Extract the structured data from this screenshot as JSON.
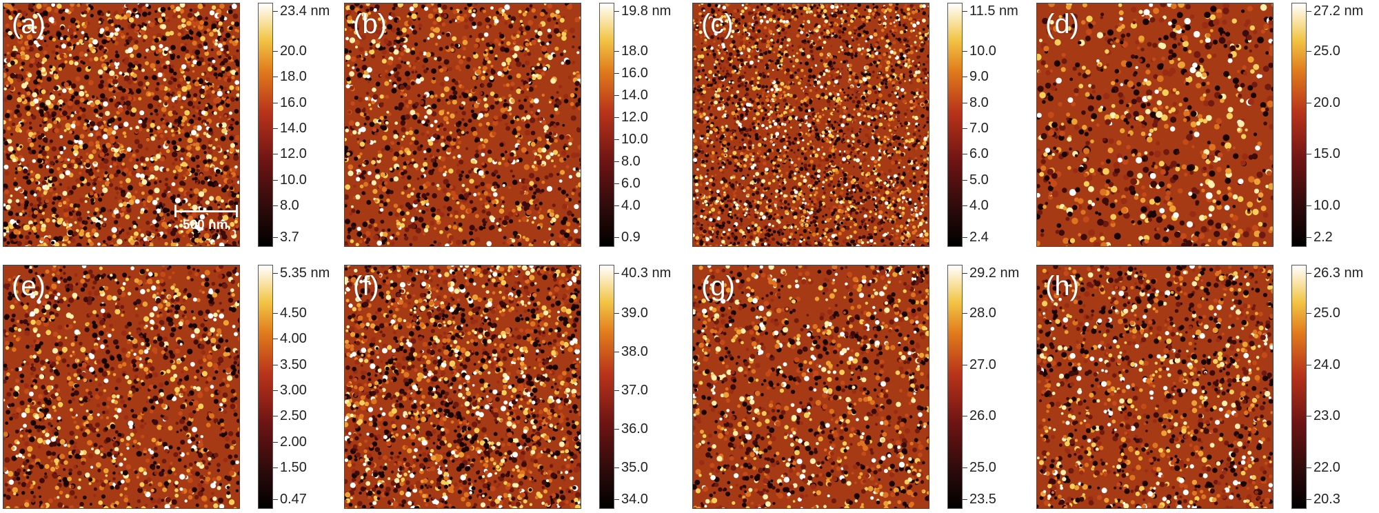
{
  "panels": [
    {
      "id": "a",
      "label": "(a)",
      "max_label": "23.4 nm",
      "min_label": "3.7",
      "ticks": [
        "20.0",
        "18.0",
        "16.0",
        "14.0",
        "12.0",
        "10.0",
        "8.0"
      ],
      "density": "high",
      "scale_bar": "500 nm"
    },
    {
      "id": "b",
      "label": "(b)",
      "max_label": "19.8 nm",
      "min_label": "0.9",
      "ticks": [
        "18.0",
        "16.0",
        "14.0",
        "12.0",
        "10.0",
        "8.0",
        "6.0",
        "4.0"
      ],
      "density": "medium"
    },
    {
      "id": "c",
      "label": "(c)",
      "max_label": "11.5 nm",
      "min_label": "2.4",
      "ticks": [
        "10.0",
        "9.0",
        "8.0",
        "7.0",
        "6.0",
        "5.0",
        "4.0"
      ],
      "density": "veryhigh"
    },
    {
      "id": "d",
      "label": "(d)",
      "max_label": "27.2 nm",
      "min_label": "2.2",
      "ticks": [
        "25.0",
        "20.0",
        "15.0",
        "10.0"
      ],
      "density": "low"
    },
    {
      "id": "e",
      "label": "(e)",
      "max_label": "5.35 nm",
      "min_label": "0.47",
      "ticks": [
        "4.50",
        "4.00",
        "3.50",
        "3.00",
        "2.50",
        "2.00",
        "1.50"
      ],
      "density": "medium"
    },
    {
      "id": "f",
      "label": "(f)",
      "max_label": "40.3 nm",
      "min_label": "34.0",
      "ticks": [
        "39.0",
        "38.0",
        "37.0",
        "36.0",
        "35.0"
      ],
      "density": "high"
    },
    {
      "id": "g",
      "label": "(g)",
      "max_label": "29.2 nm",
      "min_label": "23.5",
      "ticks": [
        "28.0",
        "27.0",
        "26.0",
        "25.0"
      ],
      "density": "medium"
    },
    {
      "id": "h",
      "label": "(h)",
      "max_label": "26.3 nm",
      "min_label": "20.3",
      "ticks": [
        "25.0",
        "24.0",
        "23.0",
        "22.0"
      ],
      "density": "medium"
    }
  ],
  "colors": {
    "low": "#000000",
    "mid": "#b8331a",
    "high": "#ffffff",
    "base": "#a63a14"
  }
}
